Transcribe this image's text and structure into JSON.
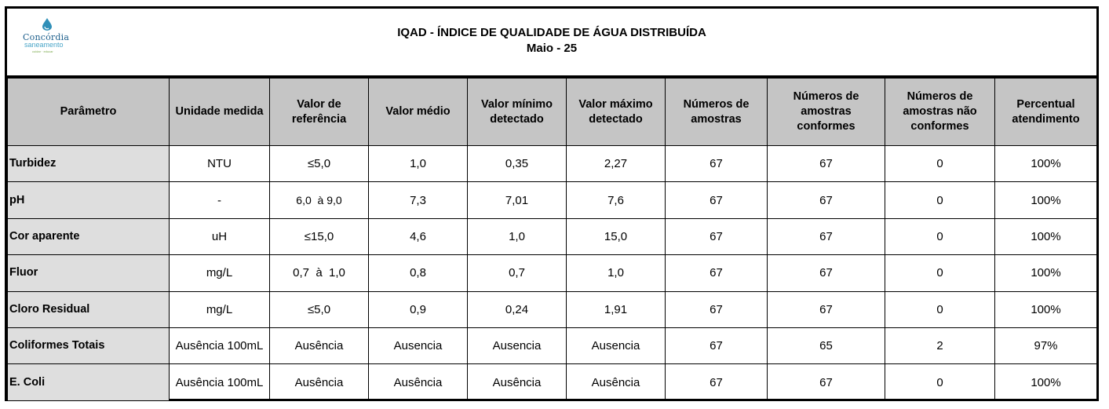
{
  "logo": {
    "name": "Concórdia",
    "sub": "saneamento",
    "tagline": "cuidar · educar"
  },
  "header": {
    "title": "IQAD - ÍNDICE DE QUALIDADE DE ÁGUA DISTRIBUÍDA",
    "subtitle": "Maio - 25"
  },
  "table": {
    "columns": [
      "Parâmetro",
      "Unidade medida",
      "Valor de referência",
      "Valor médio",
      "Valor mínimo detectado",
      "Valor máximo detectado",
      "Números de amostras",
      "Números de amostras conformes",
      "Números de amostras não conformes",
      "Percentual atendimento"
    ],
    "rows": [
      [
        "Turbidez",
        "NTU",
        "≤5,0",
        "1,0",
        "0,35",
        "2,27",
        "67",
        "67",
        "0",
        "100%"
      ],
      [
        "pH",
        "-",
        "6,0  à 9,0",
        "7,3",
        "7,01",
        "7,6",
        "67",
        "67",
        "0",
        "100%"
      ],
      [
        "Cor aparente",
        "uH",
        "≤15,0",
        "4,6",
        "1,0",
        "15,0",
        "67",
        "67",
        "0",
        "100%"
      ],
      [
        "Fluor",
        "mg/L",
        "0,7  à  1,0",
        "0,8",
        "0,7",
        "1,0",
        "67",
        "67",
        "0",
        "100%"
      ],
      [
        "Cloro Residual",
        "mg/L",
        "≤5,0",
        "0,9",
        "0,24",
        "1,91",
        "67",
        "67",
        "0",
        "100%"
      ],
      [
        "Coliformes Totais",
        "Ausência 100mL",
        "Ausência",
        "Ausencia",
        "Ausencia",
        "Ausencia",
        "67",
        "65",
        "2",
        "97%"
      ],
      [
        "E. Coli",
        "Ausência 100mL",
        "Ausência",
        "Ausência",
        "Ausência",
        "Ausência",
        "67",
        "67",
        "0",
        "100%"
      ]
    ]
  }
}
